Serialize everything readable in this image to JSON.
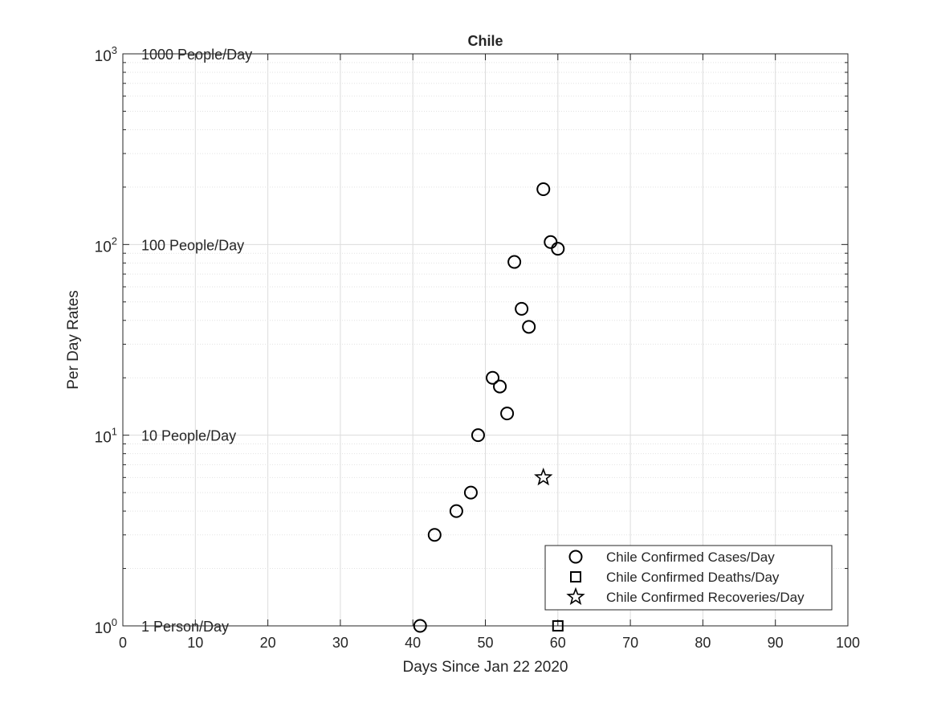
{
  "chart_data": {
    "type": "scatter",
    "title": "Chile",
    "xlabel": "Days Since Jan 22 2020",
    "ylabel": "Per Day Rates",
    "xlim": [
      0,
      100
    ],
    "ylim": [
      1,
      1000
    ],
    "yscale": "log",
    "grid": true,
    "x_ticks": [
      0,
      10,
      20,
      30,
      40,
      50,
      60,
      70,
      80,
      90,
      100
    ],
    "y_ticks": [
      {
        "value": 1,
        "base": "10",
        "exp": "0"
      },
      {
        "value": 10,
        "base": "10",
        "exp": "1"
      },
      {
        "value": 100,
        "base": "10",
        "exp": "2"
      },
      {
        "value": 1000,
        "base": "10",
        "exp": "3"
      }
    ],
    "reference_labels": [
      {
        "value": 1000,
        "text": "1000 People/Day"
      },
      {
        "value": 100,
        "text": "100 People/Day"
      },
      {
        "value": 10,
        "text": "10 People/Day"
      },
      {
        "value": 1,
        "text": "1 Person/Day"
      }
    ],
    "legend_position": "bottom-right",
    "series": [
      {
        "name": "Chile Confirmed Cases/Day",
        "marker": "circle",
        "points": [
          {
            "x": 41,
            "y": 1
          },
          {
            "x": 43,
            "y": 3
          },
          {
            "x": 46,
            "y": 4
          },
          {
            "x": 48,
            "y": 5
          },
          {
            "x": 49,
            "y": 10
          },
          {
            "x": 51,
            "y": 20
          },
          {
            "x": 52,
            "y": 18
          },
          {
            "x": 53,
            "y": 13
          },
          {
            "x": 54,
            "y": 81
          },
          {
            "x": 55,
            "y": 46
          },
          {
            "x": 56,
            "y": 37
          },
          {
            "x": 58,
            "y": 195
          },
          {
            "x": 59,
            "y": 103
          },
          {
            "x": 60,
            "y": 95
          }
        ]
      },
      {
        "name": "Chile Confirmed Deaths/Day",
        "marker": "square",
        "points": [
          {
            "x": 60,
            "y": 1
          }
        ]
      },
      {
        "name": "Chile Confirmed Recoveries/Day",
        "marker": "star",
        "points": [
          {
            "x": 58,
            "y": 6
          }
        ]
      }
    ]
  }
}
